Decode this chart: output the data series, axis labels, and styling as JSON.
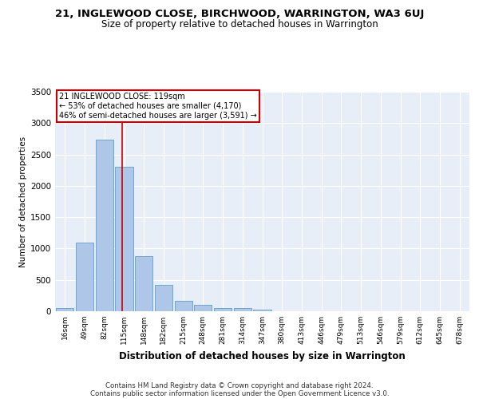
{
  "title": "21, INGLEWOOD CLOSE, BIRCHWOOD, WARRINGTON, WA3 6UJ",
  "subtitle": "Size of property relative to detached houses in Warrington",
  "xlabel": "Distribution of detached houses by size in Warrington",
  "ylabel": "Number of detached properties",
  "categories": [
    "16sqm",
    "49sqm",
    "82sqm",
    "115sqm",
    "148sqm",
    "182sqm",
    "215sqm",
    "248sqm",
    "281sqm",
    "314sqm",
    "347sqm",
    "380sqm",
    "413sqm",
    "446sqm",
    "479sqm",
    "513sqm",
    "546sqm",
    "579sqm",
    "612sqm",
    "645sqm",
    "678sqm"
  ],
  "values": [
    50,
    1090,
    2730,
    2300,
    880,
    420,
    160,
    100,
    55,
    45,
    30,
    5,
    0,
    0,
    0,
    0,
    0,
    0,
    0,
    0,
    0
  ],
  "bar_color": "#aec6e8",
  "bar_edge_color": "#5a9fd4",
  "background_color": "#e8eef7",
  "grid_color": "#ffffff",
  "annotation_line1": "21 INGLEWOOD CLOSE: 119sqm",
  "annotation_line2": "← 53% of detached houses are smaller (4,170)",
  "annotation_line3": "46% of semi-detached houses are larger (3,591) →",
  "annotation_box_color": "#ffffff",
  "annotation_border_color": "#cc0000",
  "property_line_color": "#cc0000",
  "ylim": [
    0,
    3500
  ],
  "yticks": [
    0,
    500,
    1000,
    1500,
    2000,
    2500,
    3000,
    3500
  ],
  "footer_line1": "Contains HM Land Registry data © Crown copyright and database right 2024.",
  "footer_line2": "Contains public sector information licensed under the Open Government Licence v3.0.",
  "title_fontsize": 9.5,
  "subtitle_fontsize": 8.5
}
